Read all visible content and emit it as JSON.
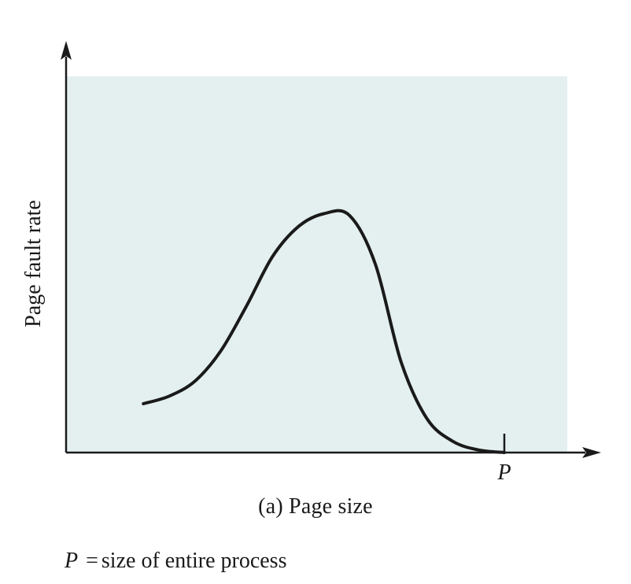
{
  "chart_data": {
    "type": "line",
    "title": "",
    "xlabel": "(a) Page size",
    "ylabel": "Page fault rate",
    "x_tick_label": "P",
    "legend": {
      "symbol": "P",
      "equals": "=",
      "description": "size of entire process"
    },
    "xlim": [
      0,
      1.2
    ],
    "ylim": [
      0,
      1.0
    ],
    "series": [
      {
        "values": [
          [
            0.15,
            0.13
          ],
          [
            0.2,
            0.15
          ],
          [
            0.25,
            0.19
          ],
          [
            0.3,
            0.27
          ],
          [
            0.35,
            0.39
          ],
          [
            0.4,
            0.52
          ],
          [
            0.45,
            0.6
          ],
          [
            0.5,
            0.635
          ],
          [
            0.55,
            0.63
          ],
          [
            0.6,
            0.5
          ],
          [
            0.65,
            0.24
          ],
          [
            0.7,
            0.09
          ],
          [
            0.75,
            0.03
          ],
          [
            0.8,
            0.007
          ],
          [
            0.85,
            0.0
          ]
        ]
      }
    ],
    "x_marker": 0.85,
    "background_color": "#e3f0ef",
    "line_color": "#1a1a1a",
    "axis_color": "#1a1a1a"
  }
}
